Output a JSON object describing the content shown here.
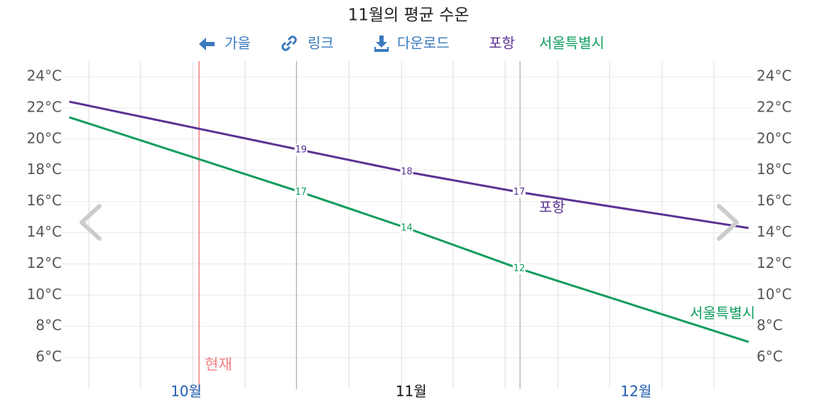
{
  "chart_data": {
    "type": "line",
    "title": "11월의 평균 수온",
    "toolbar": [
      "가을",
      "링크",
      "다운로드"
    ],
    "x": [
      9.48,
      10.51,
      10.98,
      11.48,
      12.5
    ],
    "series": [
      {
        "name": "포항",
        "color": "#5b3294",
        "values": [
          22.4,
          19.3,
          17.9,
          16.6,
          14.3
        ],
        "value_labels": [
          null,
          "19",
          "18",
          "17",
          null
        ]
      },
      {
        "name": "서울특별시",
        "color": "#0f9d5c",
        "values": [
          21.4,
          16.6,
          14.3,
          11.7,
          7.0
        ],
        "value_labels": [
          null,
          "17",
          "14",
          "12",
          null
        ]
      }
    ],
    "xlim": [
      9.45,
      12.52
    ],
    "xticks": [
      {
        "value": 10,
        "label": "10월"
      },
      {
        "value": 11,
        "label": "11월"
      },
      {
        "value": 12,
        "label": "12월"
      }
    ],
    "xtick_color": "#1f5cb0",
    "selected_xtick": 1,
    "selected_xtick_color": "#111111",
    "x_gridlines": [
      9.567,
      9.797,
      10.028,
      10.262,
      10.723,
      10.957,
      11.187,
      11.418,
      11.652,
      11.882,
      12.116,
      12.346
    ],
    "month_bounds": [
      10.49,
      11.484
    ],
    "now": {
      "x": 10.057,
      "label": "현재",
      "color": "#f08080"
    },
    "ylim": [
      4,
      25
    ],
    "yticks": [
      {
        "value": 6,
        "label": "6°C"
      },
      {
        "value": 8,
        "label": "8°C"
      },
      {
        "value": 10,
        "label": "10°C"
      },
      {
        "value": 12,
        "label": "12°C"
      },
      {
        "value": 14,
        "label": "14°C"
      },
      {
        "value": 16,
        "label": "16°C"
      },
      {
        "value": 18,
        "label": "18°C"
      },
      {
        "value": 20,
        "label": "20°C"
      },
      {
        "value": 22,
        "label": "22°C"
      },
      {
        "value": 24,
        "label": "24°C"
      }
    ],
    "grid": true
  }
}
